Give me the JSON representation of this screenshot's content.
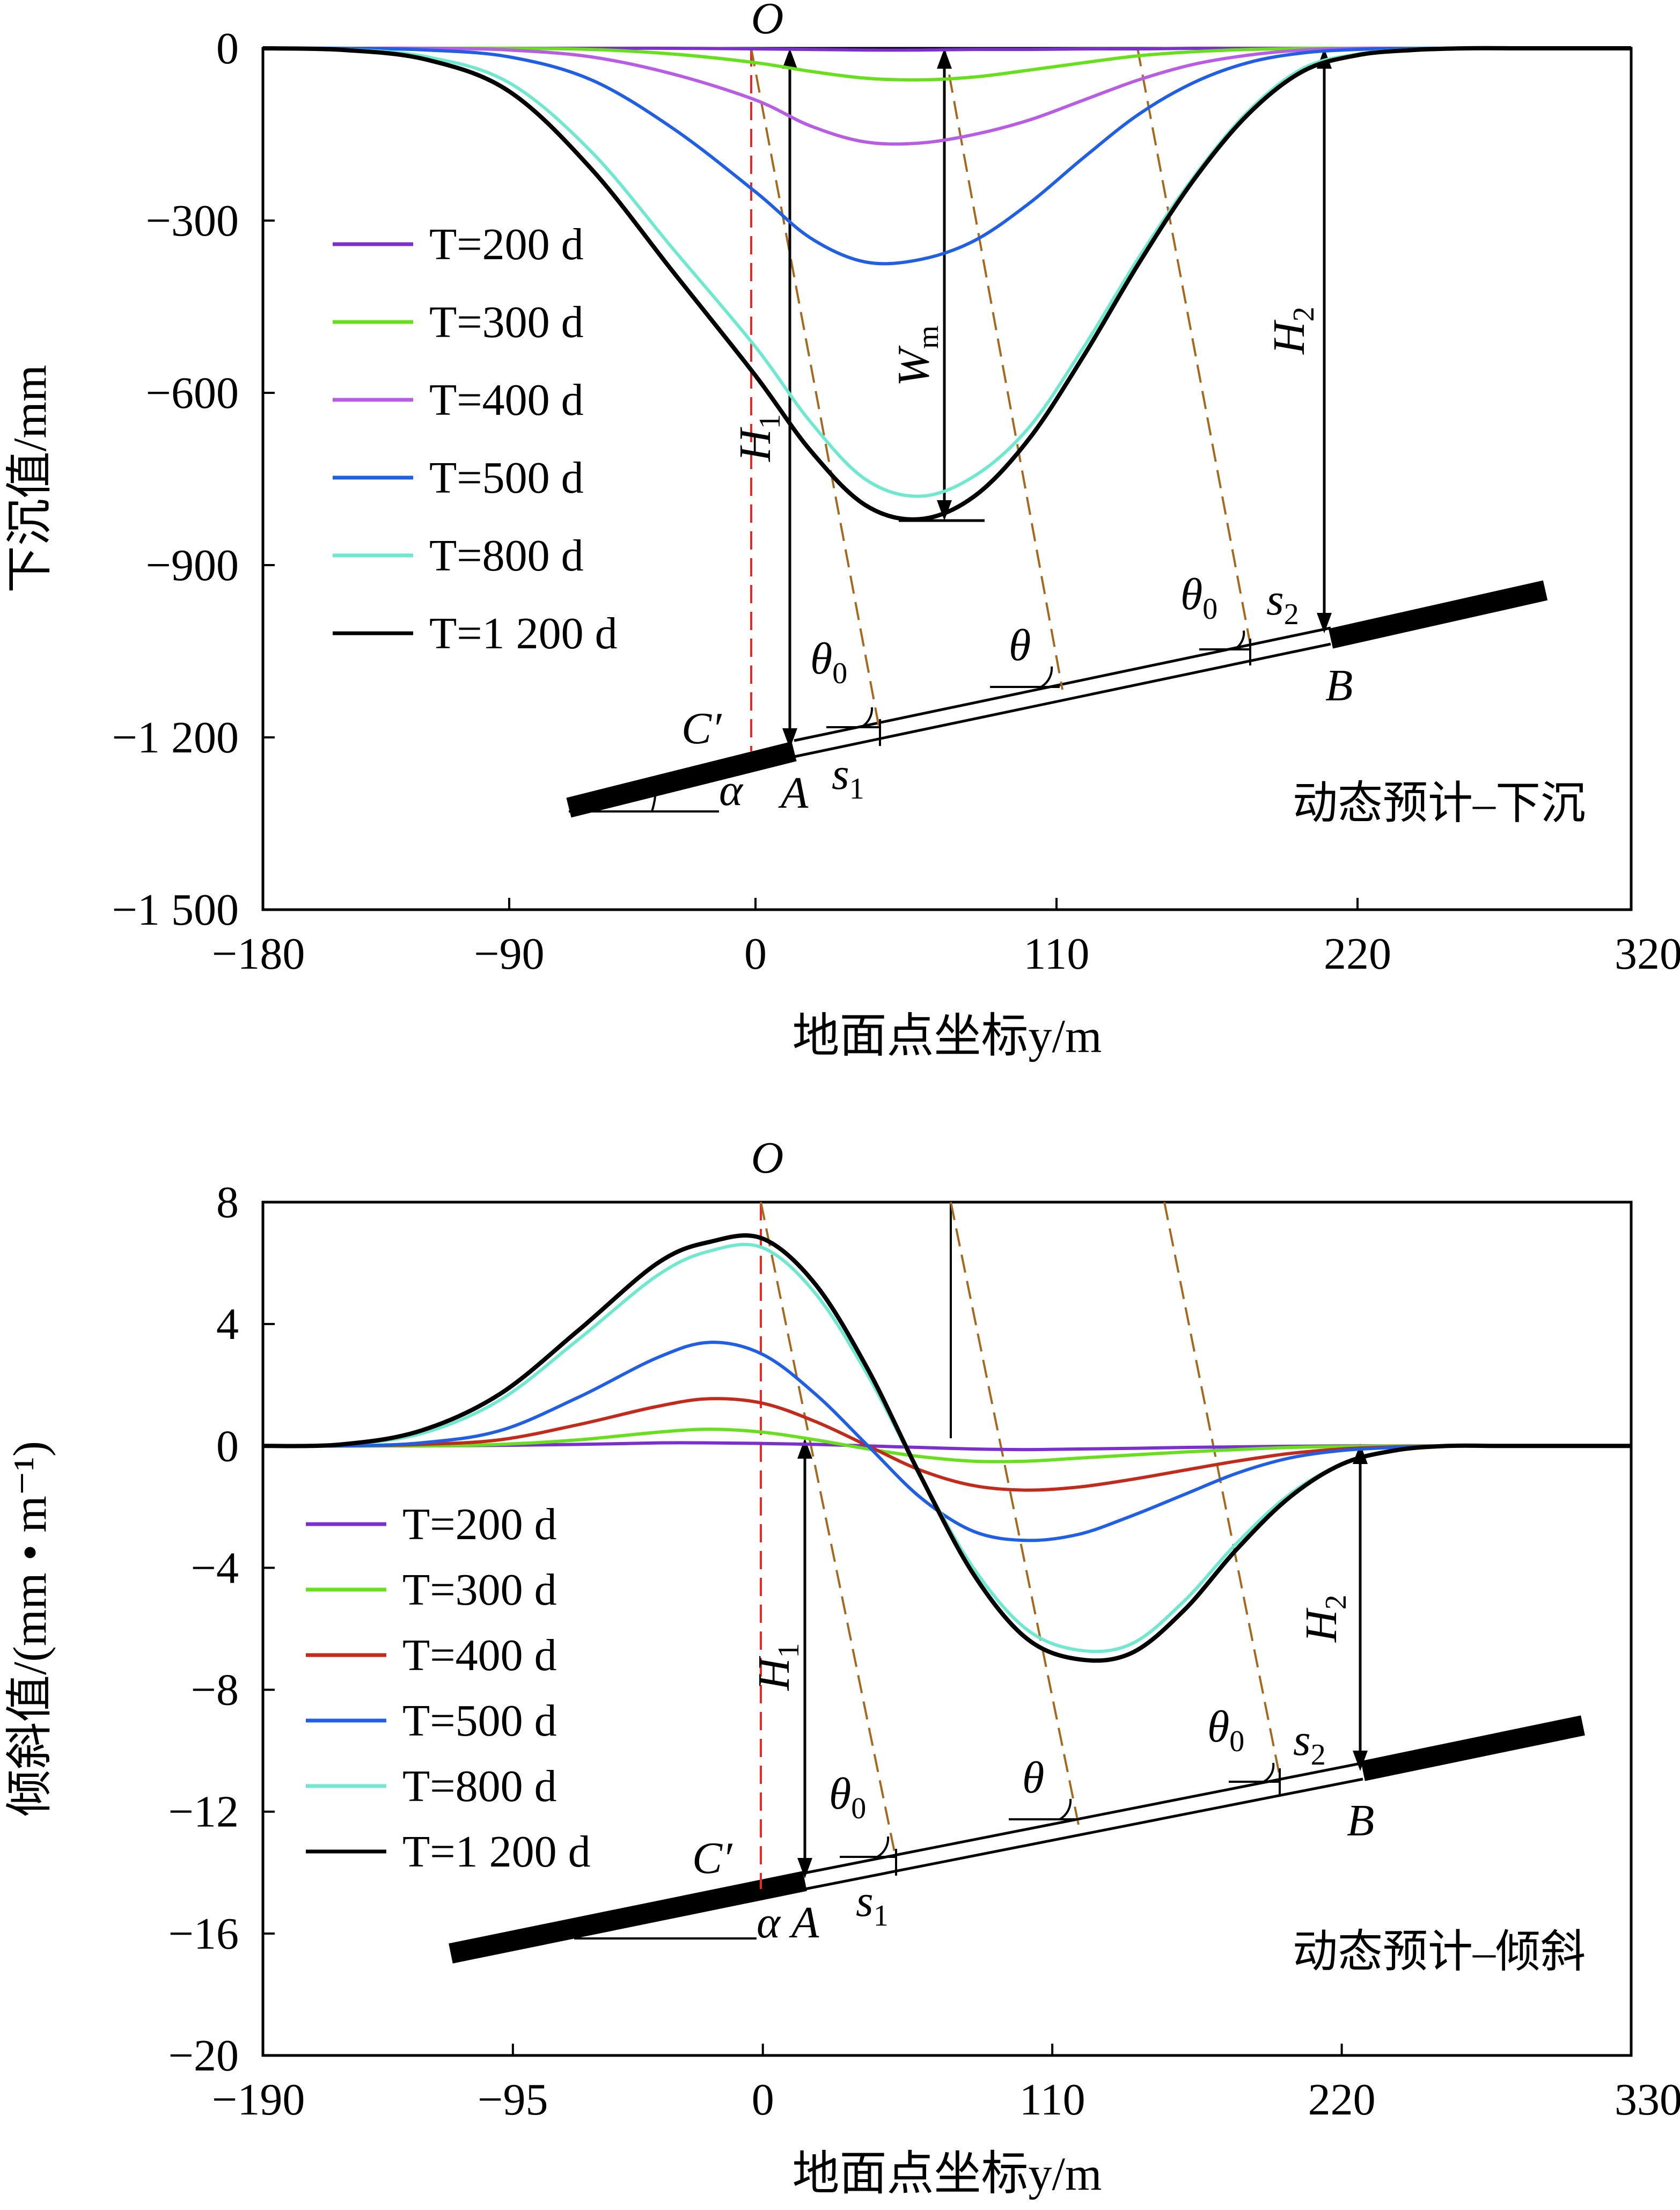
{
  "chart_data": [
    {
      "type": "line",
      "title": "",
      "xlabel": "地面点坐标y/m",
      "ylabel": "下沉值/mm",
      "annotation": "动态预计–下沉",
      "xlim": [
        -180,
        320
      ],
      "ylim": [
        -1500,
        0
      ],
      "x_ticks": [
        "−180",
        "−90",
        "0",
        "110",
        "220",
        "320"
      ],
      "x_tick_values": [
        -180,
        -90,
        0,
        110,
        220,
        320
      ],
      "y_ticks": [
        "0",
        "−300",
        "−600",
        "−900",
        "−1 200",
        "−1 500"
      ],
      "y_tick_values": [
        0,
        -300,
        -600,
        -900,
        -1200,
        -1500
      ],
      "grid": false,
      "legend_position": "left",
      "x": [
        -180,
        -150,
        -120,
        -90,
        -60,
        -30,
        0,
        20,
        40,
        60,
        80,
        100,
        120,
        140,
        160,
        180,
        200,
        220,
        240,
        260,
        280,
        300,
        320
      ],
      "series": [
        {
          "name": "T=200 d",
          "color": "#7b2fd1",
          "values": [
            0,
            0,
            0,
            0,
            0,
            0,
            -1,
            -2,
            -3,
            -3,
            -2,
            -2,
            -1,
            -1,
            0,
            0,
            0,
            0,
            0,
            0,
            0,
            0,
            0
          ]
        },
        {
          "name": "T=300 d",
          "color": "#66e01a",
          "values": [
            0,
            0,
            0,
            0,
            -2,
            -10,
            -25,
            -40,
            -52,
            -55,
            -50,
            -38,
            -25,
            -13,
            -6,
            -2,
            0,
            0,
            0,
            0,
            0,
            0,
            0
          ]
        },
        {
          "name": "T=400 d",
          "color": "#b85ce6",
          "values": [
            0,
            0,
            0,
            -3,
            -15,
            -45,
            -90,
            -135,
            -163,
            -165,
            -150,
            -125,
            -90,
            -55,
            -28,
            -12,
            -3,
            0,
            0,
            0,
            0,
            0,
            0
          ]
        },
        {
          "name": "T=500 d",
          "color": "#1f5ee6",
          "values": [
            0,
            0,
            -3,
            -15,
            -55,
            -140,
            -250,
            -330,
            -372,
            -368,
            -335,
            -270,
            -190,
            -115,
            -60,
            -25,
            -8,
            -2,
            0,
            0,
            0,
            0,
            0
          ]
        },
        {
          "name": "T=800 d",
          "color": "#6fe8d0",
          "values": [
            0,
            -2,
            -15,
            -60,
            -180,
            -350,
            -520,
            -650,
            -750,
            -780,
            -745,
            -660,
            -520,
            -365,
            -225,
            -110,
            -35,
            -10,
            -2,
            0,
            0,
            0,
            0
          ]
        },
        {
          "name": "T=1 200 d",
          "color": "#000000",
          "values": [
            0,
            -3,
            -20,
            -75,
            -210,
            -390,
            -570,
            -700,
            -795,
            -820,
            -780,
            -680,
            -535,
            -375,
            -230,
            -115,
            -40,
            -12,
            -3,
            0,
            0,
            0,
            0
          ]
        }
      ],
      "labels": {
        "O": "O",
        "Wm": "W",
        "Wm_sub": "m",
        "H1": "H",
        "H1_sub": "1",
        "H2": "H",
        "H2_sub": "2",
        "theta": "θ",
        "theta0": "θ",
        "theta0_sub": "0",
        "s1": "s",
        "s1_sub": "1",
        "s2": "s",
        "s2_sub": "2",
        "alpha": "α",
        "A": "A",
        "B": "B",
        "C": "C′"
      }
    },
    {
      "type": "line",
      "title": "",
      "xlabel": "地面点坐标y/m",
      "ylabel": "倾斜值/(mm • m⁻¹)",
      "annotation": "动态预计–倾斜",
      "xlim": [
        -190,
        330
      ],
      "ylim": [
        -20,
        8
      ],
      "x_ticks": [
        "−190",
        "−95",
        "0",
        "110",
        "220",
        "330"
      ],
      "x_tick_values": [
        -190,
        -95,
        0,
        110,
        220,
        330
      ],
      "y_ticks": [
        "8",
        "4",
        "0",
        "−4",
        "−8",
        "−12",
        "−16",
        "−20"
      ],
      "y_tick_values": [
        8,
        4,
        0,
        -4,
        -8,
        -12,
        -16,
        -20
      ],
      "grid": false,
      "legend_position": "left",
      "x": [
        -190,
        -160,
        -130,
        -100,
        -70,
        -40,
        -20,
        0,
        20,
        40,
        60,
        80,
        100,
        120,
        140,
        160,
        180,
        200,
        220,
        240,
        260,
        280,
        300,
        330
      ],
      "series": [
        {
          "name": "T=200 d",
          "color": "#7b2fd1",
          "values": [
            0,
            0,
            0,
            0.02,
            0.05,
            0.1,
            0.1,
            0.08,
            0.05,
            0,
            -0.05,
            -0.1,
            -0.12,
            -0.1,
            -0.08,
            -0.05,
            -0.03,
            -0.01,
            0,
            0,
            0,
            0,
            0,
            0
          ]
        },
        {
          "name": "T=300 d",
          "color": "#66e01a",
          "values": [
            0,
            0,
            0,
            0.05,
            0.2,
            0.45,
            0.55,
            0.45,
            0.2,
            -0.1,
            -0.35,
            -0.5,
            -0.5,
            -0.4,
            -0.3,
            -0.2,
            -0.12,
            -0.05,
            -0.02,
            0,
            0,
            0,
            0,
            0
          ]
        },
        {
          "name": "T=400 d",
          "color": "#c42a1a",
          "values": [
            0,
            0,
            0.05,
            0.2,
            0.7,
            1.3,
            1.55,
            1.4,
            0.8,
            0,
            -0.8,
            -1.3,
            -1.45,
            -1.35,
            -1.1,
            -0.8,
            -0.5,
            -0.25,
            -0.1,
            -0.03,
            0,
            0,
            0,
            0
          ]
        },
        {
          "name": "T=500 d",
          "color": "#1f5ee6",
          "values": [
            0,
            0,
            0.1,
            0.5,
            1.6,
            2.9,
            3.4,
            3.0,
            1.7,
            0,
            -1.7,
            -2.8,
            -3.1,
            -2.9,
            -2.3,
            -1.6,
            -0.9,
            -0.4,
            -0.15,
            -0.05,
            0,
            0,
            0,
            0
          ]
        },
        {
          "name": "T=800 d",
          "color": "#6fe8d0",
          "values": [
            0,
            0.05,
            0.4,
            1.5,
            3.5,
            5.6,
            6.4,
            6.5,
            5.0,
            2.3,
            -1.0,
            -4.0,
            -6.0,
            -6.7,
            -6.5,
            -5.1,
            -3.2,
            -1.6,
            -0.6,
            -0.15,
            0,
            0,
            0,
            0
          ]
        },
        {
          "name": "T=1 200 d",
          "color": "#000000",
          "values": [
            0,
            0.05,
            0.5,
            1.7,
            3.8,
            6.0,
            6.7,
            6.8,
            5.3,
            2.5,
            -1.0,
            -4.2,
            -6.3,
            -7.0,
            -6.8,
            -5.4,
            -3.4,
            -1.7,
            -0.6,
            -0.15,
            0,
            0,
            0,
            0
          ]
        }
      ],
      "labels": {
        "O": "O",
        "H1": "H",
        "H1_sub": "1",
        "H2": "H",
        "H2_sub": "2",
        "theta": "θ",
        "theta0": "θ",
        "theta0_sub": "0",
        "s1": "s",
        "s1_sub": "1",
        "s2": "s",
        "s2_sub": "2",
        "alpha": "α",
        "A": "A",
        "B": "B",
        "C": "C′"
      }
    }
  ]
}
